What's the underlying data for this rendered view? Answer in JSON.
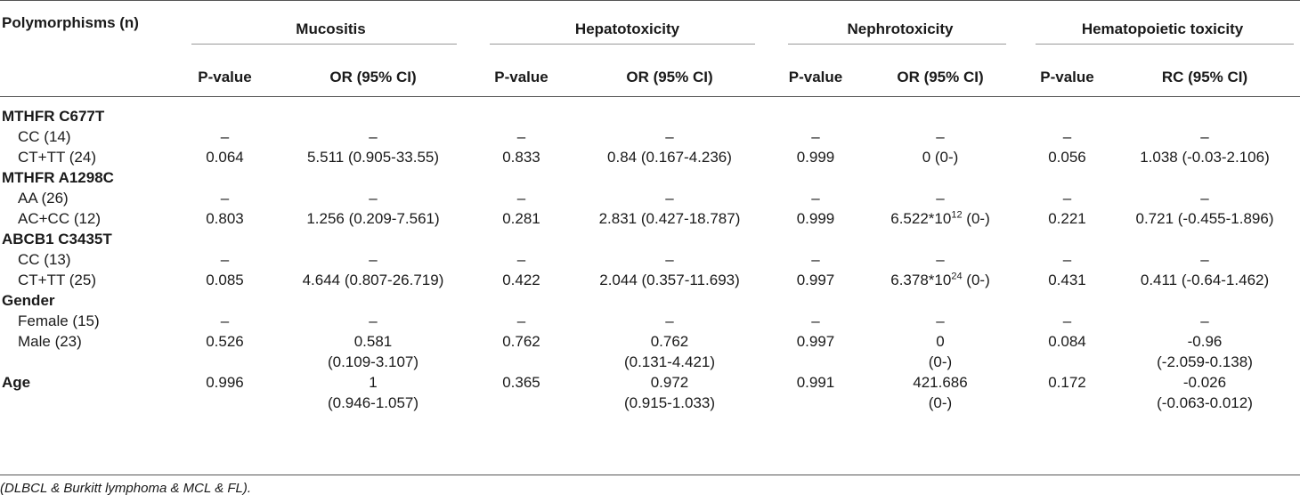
{
  "header": {
    "polymorphisms_label": "Polymorphisms (n)",
    "groups": [
      "Mucositis",
      "Hepatotoxicity",
      "Nephrotoxicity",
      "Hematopoietic toxicity"
    ],
    "subcols": [
      "P-value",
      "OR (95% CI)",
      "P-value",
      "OR (95% CI)",
      "P-value",
      "OR (95% CI)",
      "P-value",
      "RC (95% CI)"
    ]
  },
  "rows": [
    {
      "type": "section",
      "label": "MTHFR C677T"
    },
    {
      "type": "data",
      "label": "CC (14)",
      "cells": [
        "–",
        "–",
        "–",
        "–",
        "–",
        "–",
        "–",
        "–"
      ]
    },
    {
      "type": "data",
      "label": "CT+TT (24)",
      "cells": [
        "0.064",
        "5.511 (0.905-33.55)",
        "0.833",
        "0.84 (0.167-4.236)",
        "0.999",
        "0 (0-)",
        "0.056",
        "1.038 (-0.03-2.106)"
      ]
    },
    {
      "type": "section",
      "label": "MTHFR A1298C"
    },
    {
      "type": "data",
      "label": "AA (26)",
      "cells": [
        "–",
        "–",
        "–",
        "–",
        "–",
        "–",
        "–",
        "–"
      ]
    },
    {
      "type": "data",
      "label": "AC+CC (12)",
      "cells": [
        "0.803",
        "1.256 (0.209-7.561)",
        "0.281",
        "2.831 (0.427-18.787)",
        "0.999",
        "6.522*10",
        "0.221",
        "0.721 (-0.455-1.896)"
      ],
      "neph_sup": "12",
      "neph_tail": " (0-)"
    },
    {
      "type": "section",
      "label": "ABCB1 C3435T"
    },
    {
      "type": "data",
      "label": "CC (13)",
      "cells": [
        "–",
        "–",
        "–",
        "–",
        "–",
        "–",
        "–",
        "–"
      ]
    },
    {
      "type": "data",
      "label": "CT+TT (25)",
      "cells": [
        "0.085",
        "4.644 (0.807-26.719)",
        "0.422",
        "2.044 (0.357-11.693)",
        "0.997",
        "6.378*10",
        "0.431",
        "0.411 (-0.64-1.462)"
      ],
      "neph_sup": "24",
      "neph_tail": " (0-)"
    },
    {
      "type": "section",
      "label": "Gender"
    },
    {
      "type": "data",
      "label": "Female (15)",
      "cells": [
        "–",
        "–",
        "–",
        "–",
        "–",
        "–",
        "–",
        "–"
      ]
    },
    {
      "type": "data2",
      "label": "Male (23)",
      "cells": [
        "0.526",
        "0.581",
        "0.762",
        "0.762",
        "0.997",
        "0",
        "0.084",
        "-0.96"
      ],
      "cells2": [
        "",
        "(0.109-3.107)",
        "",
        "(0.131-4.421)",
        "",
        "(0-)",
        "",
        "(-2.059-0.138)"
      ]
    },
    {
      "type": "data2",
      "label": "Age",
      "bold": true,
      "cells": [
        "0.996",
        "1",
        "0.365",
        "0.972",
        "0.991",
        "421.686",
        "0.172",
        "-0.026"
      ],
      "cells2": [
        "",
        "(0.946-1.057)",
        "",
        "(0.915-1.033)",
        "",
        "(0-)",
        "",
        "(-0.063-0.012)"
      ]
    }
  ],
  "footnote": "(DLBCL & Burkitt lymphoma & MCL & FL)."
}
